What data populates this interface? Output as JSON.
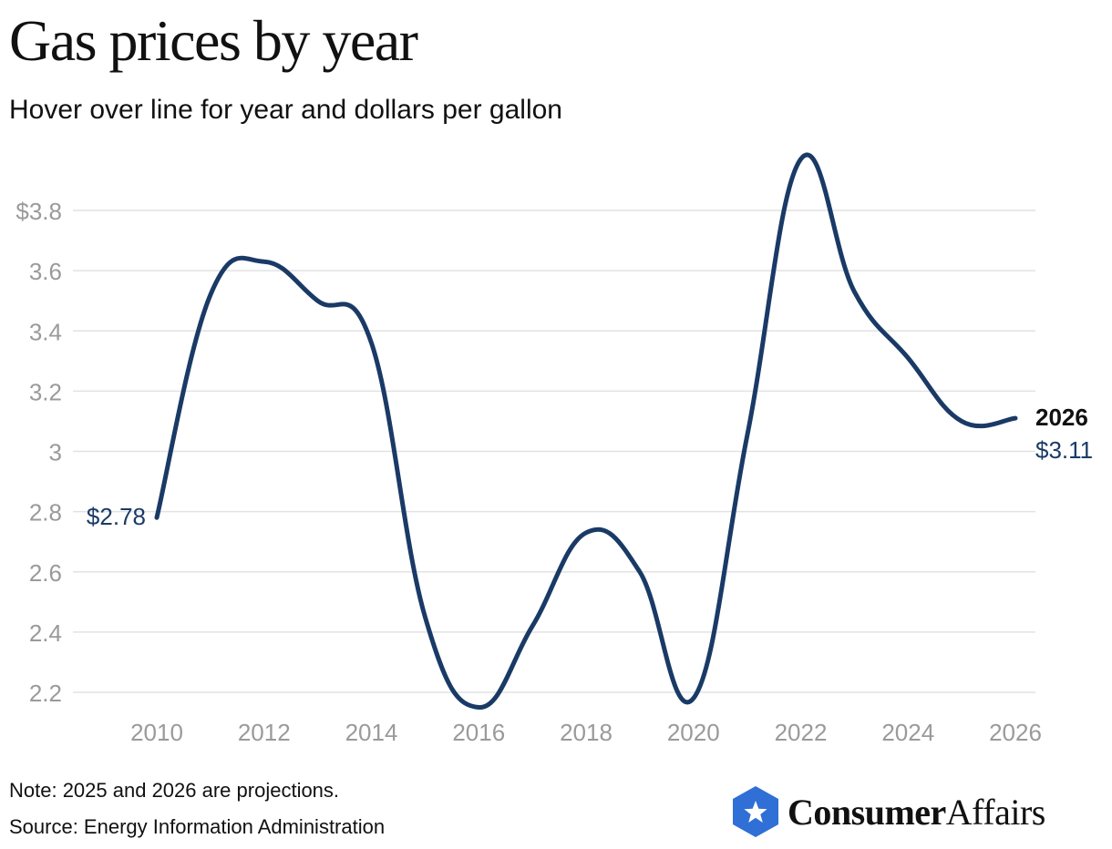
{
  "page": {
    "title": "Gas prices by year",
    "subtitle": "Hover over line for year and dollars per gallon",
    "note": "Note: 2025 and 2026 are projections.",
    "source": "Source: Energy Information Administration"
  },
  "logo": {
    "name_bold": "Consumer",
    "name_regular": "Affairs",
    "icon": "star-shield-icon",
    "icon_color": "#2F6FD6"
  },
  "colors": {
    "line": "#1A3A66",
    "grid": "#E2E2E2",
    "axis_text": "#9A9A9A",
    "end_year_label": "#111111"
  },
  "chart_data": {
    "type": "line",
    "title": "Gas prices by year",
    "subtitle": "Hover over line for year and dollars per gallon",
    "xlabel": "",
    "ylabel": "",
    "x": [
      2010,
      2011,
      2012,
      2013,
      2014,
      2015,
      2016,
      2017,
      2018,
      2019,
      2020,
      2021,
      2022,
      2023,
      2024,
      2025,
      2026
    ],
    "values": [
      2.78,
      3.52,
      3.63,
      3.5,
      3.36,
      2.45,
      2.15,
      2.42,
      2.73,
      2.6,
      2.18,
      3.05,
      3.97,
      3.53,
      3.31,
      3.1,
      3.11
    ],
    "xlim": [
      2010,
      2026
    ],
    "ylim": [
      2.13,
      3.98
    ],
    "y_ticks": [
      2.2,
      2.4,
      2.6,
      2.8,
      3.0,
      3.2,
      3.4,
      3.6,
      3.8
    ],
    "y_tick_labels": [
      "2.2",
      "2.4",
      "2.6",
      "2.8",
      "3",
      "3.2",
      "3.4",
      "3.6",
      "$3.8"
    ],
    "x_ticks": [
      2010,
      2012,
      2014,
      2016,
      2018,
      2020,
      2022,
      2024,
      2026
    ],
    "x_tick_labels": [
      "2010",
      "2012",
      "2014",
      "2016",
      "2018",
      "2020",
      "2022",
      "2024",
      "2026"
    ],
    "grid": true,
    "legend": "none",
    "start_label": "$2.78",
    "end_year_label": "2026",
    "end_value_label": "$3.11"
  }
}
